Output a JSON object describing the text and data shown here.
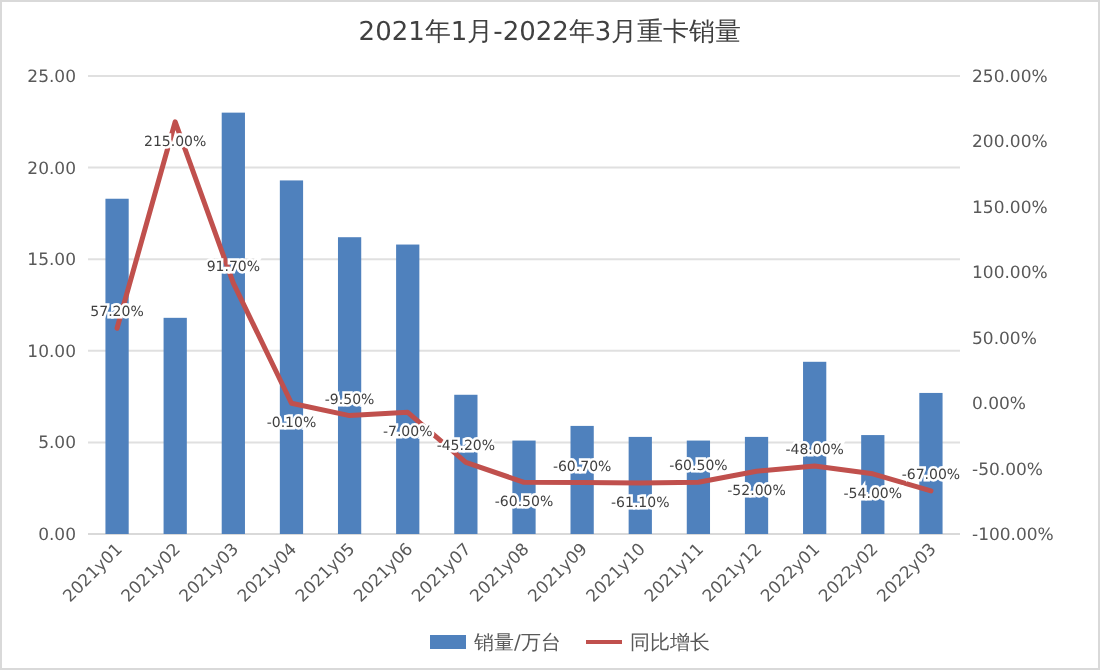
{
  "chart_data": {
    "type": "bar",
    "title": "2021年1月-2022年3月重卡销量",
    "categories": [
      "2021y01",
      "2021y02",
      "2021y03",
      "2021y04",
      "2021y05",
      "2021y06",
      "2021y07",
      "2021y08",
      "2021y09",
      "2021y10",
      "2021y11",
      "2021y12",
      "2022y01",
      "2022y02",
      "2022y03"
    ],
    "series": [
      {
        "name": "销量/万台",
        "color": "#4f81bd",
        "values": [
          18.3,
          11.8,
          23.0,
          19.3,
          16.2,
          15.8,
          7.6,
          5.1,
          5.9,
          5.3,
          5.1,
          5.3,
          9.4,
          5.4,
          7.7
        ]
      },
      {
        "name": "同比增长",
        "type": "line",
        "axis": "y2",
        "color": "#c0504d",
        "values": [
          57.2,
          215.0,
          91.7,
          -0.1,
          -9.5,
          -7.0,
          -45.2,
          -60.5,
          -60.7,
          -61.1,
          -60.5,
          -52.0,
          -48.0,
          -54.0,
          -67.0
        ],
        "value_labels": [
          "57.20%",
          "215.00%",
          "91.70%",
          "-0.10%",
          "-9.50%",
          "-7.00%",
          "-45.20%",
          "-60.50%",
          "-60.70%",
          "-61.10%",
          "-60.50%",
          "-52.00%",
          "-48.00%",
          "-54.00%",
          "-67.00%"
        ]
      }
    ],
    "ylim": [
      0,
      25
    ],
    "yticks": [
      {
        "value": 0,
        "label": "0.00"
      },
      {
        "value": 5,
        "label": "5.00"
      },
      {
        "value": 10,
        "label": "10.00"
      },
      {
        "value": 15,
        "label": "15.00"
      },
      {
        "value": 20,
        "label": "20.00"
      },
      {
        "value": 25,
        "label": "25.00"
      }
    ],
    "y2lim": [
      -100,
      250
    ],
    "y2ticks": [
      {
        "value": -100,
        "label": "-100.00%"
      },
      {
        "value": -50,
        "label": "-50.00%"
      },
      {
        "value": 0,
        "label": "0.00%"
      },
      {
        "value": 50,
        "label": "50.00%"
      },
      {
        "value": 100,
        "label": "100.00%"
      },
      {
        "value": 150,
        "label": "150.00%"
      },
      {
        "value": 200,
        "label": "200.00%"
      },
      {
        "value": 250,
        "label": "250.00%"
      }
    ],
    "grid": "y",
    "legend": "bottom"
  }
}
